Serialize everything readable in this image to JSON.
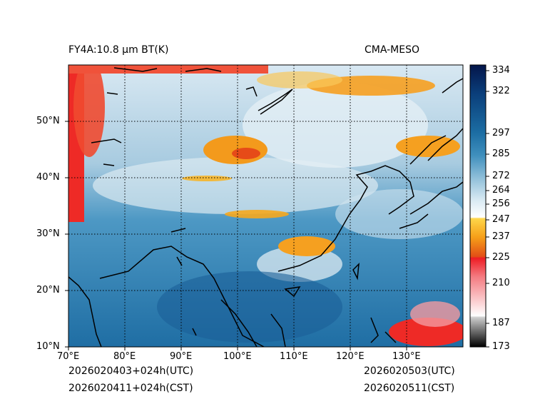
{
  "header": {
    "left_title": "FY4A:10.8 µm BT(K)",
    "right_title": "CMA-MESO"
  },
  "map": {
    "lon_ticks": [
      "70°E",
      "80°E",
      "90°E",
      "100°E",
      "110°E",
      "120°E",
      "130°E"
    ],
    "lat_ticks": [
      "10°N",
      "20°N",
      "30°N",
      "40°N",
      "50°N"
    ],
    "lon_range_deg": [
      70,
      140
    ],
    "lat_range_deg": [
      10,
      60
    ]
  },
  "colorbar": {
    "labels": [
      "334",
      "322",
      "297",
      "285",
      "272",
      "264",
      "256",
      "247",
      "237",
      "225",
      "210",
      "187",
      "173"
    ],
    "min": 173,
    "max": 334
  },
  "footer": {
    "left_utc": "2026020403+024h(UTC)",
    "left_cst": "2026020411+024h(CST)",
    "right_utc": "2026020503(UTC)",
    "right_cst": "2026020511(CST)"
  },
  "colors": {
    "clear_ocean": "#2f7fb0",
    "cold_cloud": "#f5a81a",
    "very_cold": "#e8262a",
    "coast": "#000000"
  }
}
